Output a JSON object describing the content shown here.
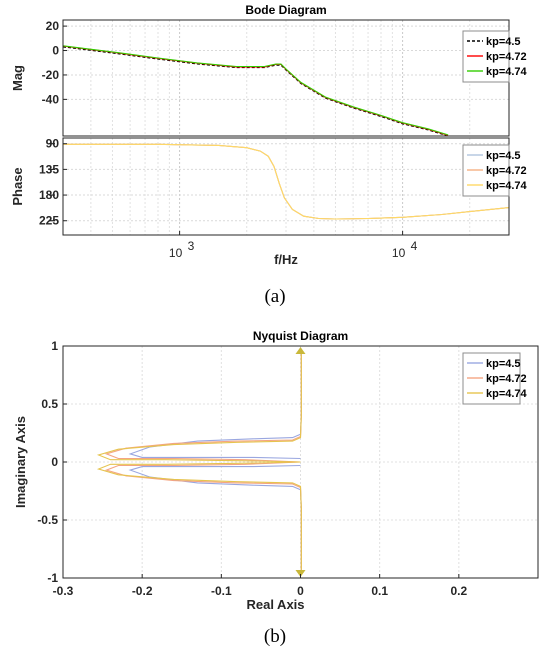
{
  "captions": {
    "a": "(a)",
    "b": "(b)"
  },
  "chart_data": [
    {
      "type": "line",
      "panel": "magnitude",
      "title": "Bode Diagram",
      "ylabel": "Mag",
      "xlabel": "",
      "xscale": "log",
      "xlim": [
        300,
        30000
      ],
      "ylim": [
        -70,
        25
      ],
      "yticks": [
        20,
        0,
        -20,
        -40
      ],
      "yticklabels": [
        "20",
        "0",
        "-20",
        "-40"
      ],
      "grid": true,
      "legend": "top-right",
      "series": [
        {
          "name": "kp=4.5",
          "color": "#000000",
          "style": "dashed",
          "x": [
            300,
            500,
            800,
            1200,
            1800,
            2400,
            2700,
            2850,
            3000,
            3500,
            4500,
            6000,
            8000,
            10000,
            13000,
            16000
          ],
          "y": [
            3,
            -2,
            -7,
            -11,
            -14,
            -14,
            -12,
            -12,
            -16,
            -27,
            -39,
            -47,
            -54,
            -60,
            -65,
            -70
          ]
        },
        {
          "name": "kp=4.72",
          "color": "#ff0000",
          "style": "solid",
          "x": [
            300,
            500,
            800,
            1200,
            1800,
            2400,
            2700,
            2850,
            3000,
            3500,
            4500,
            6000,
            8000,
            10000,
            13000,
            16000
          ],
          "y": [
            3.6,
            -1.4,
            -6.4,
            -10.4,
            -13.4,
            -13.4,
            -11.4,
            -11.4,
            -15.4,
            -26.4,
            -38.4,
            -46.4,
            -53.4,
            -59.4,
            -64.4,
            -69.4
          ]
        },
        {
          "name": "kp=4.74",
          "color": "#33cc00",
          "style": "solid",
          "x": [
            300,
            500,
            800,
            1200,
            1800,
            2400,
            2700,
            2850,
            3000,
            3500,
            4500,
            6000,
            8000,
            10000,
            13000,
            16000
          ],
          "y": [
            3.9,
            -1.1,
            -6.1,
            -10.1,
            -13.1,
            -13.1,
            -11.1,
            -11.1,
            -15.1,
            -26.1,
            -38.1,
            -46.1,
            -53.1,
            -59.1,
            -64.1,
            -69.1
          ]
        }
      ]
    },
    {
      "type": "line",
      "panel": "phase",
      "title": "",
      "ylabel": "Phase",
      "xlabel": "f/Hz",
      "xscale": "log",
      "xlim": [
        300,
        30000
      ],
      "ylim": [
        -250,
        -80
      ],
      "yticks": [
        -90,
        -135,
        -180,
        -225
      ],
      "yticklabels": [
        "90",
        "135",
        "180",
        "225"
      ],
      "xticks": [
        1000,
        10000
      ],
      "xtick_bases": [
        "10",
        "10"
      ],
      "xtick_exps": [
        "3",
        "4"
      ],
      "grid": true,
      "legend": "top-right",
      "series": [
        {
          "name": "kp=4.5",
          "color": "#b0c4de",
          "style": "solid",
          "x": [
            300,
            800,
            1500,
            2000,
            2300,
            2500,
            2650,
            2800,
            2950,
            3200,
            3600,
            4200,
            5000,
            7000,
            10000,
            15000,
            20000,
            30000
          ],
          "y": [
            -91,
            -91,
            -93,
            -97,
            -103,
            -112,
            -130,
            -160,
            -185,
            -205,
            -217,
            -221,
            -222,
            -221,
            -219,
            -214,
            -209,
            -202
          ]
        },
        {
          "name": "kp=4.72",
          "color": "#f4b183",
          "style": "solid",
          "x": [
            300,
            800,
            1500,
            2000,
            2300,
            2500,
            2650,
            2800,
            2950,
            3200,
            3600,
            4200,
            5000,
            7000,
            10000,
            15000,
            20000,
            30000
          ],
          "y": [
            -91,
            -91,
            -93,
            -97,
            -103,
            -112,
            -130,
            -160,
            -185,
            -205,
            -217,
            -221,
            -222,
            -221,
            -219,
            -214,
            -209,
            -202
          ]
        },
        {
          "name": "kp=4.74",
          "color": "#ffd966",
          "style": "solid",
          "x": [
            300,
            800,
            1500,
            2000,
            2300,
            2500,
            2650,
            2800,
            2950,
            3200,
            3600,
            4200,
            5000,
            7000,
            10000,
            15000,
            20000,
            30000
          ],
          "y": [
            -91,
            -91,
            -93,
            -97,
            -103,
            -112,
            -130,
            -160,
            -185,
            -205,
            -217,
            -221,
            -222,
            -221,
            -219,
            -214,
            -209,
            -202
          ]
        }
      ]
    },
    {
      "type": "line",
      "panel": "nyquist",
      "title": "Nyquist Diagram",
      "xlabel": "Real Axis",
      "ylabel": "Imaginary Axis",
      "xlim": [
        -0.3,
        0.3
      ],
      "ylim": [
        -1,
        1
      ],
      "xticks": [
        -0.3,
        -0.2,
        -0.1,
        0,
        0.1,
        0.2
      ],
      "xticklabels": [
        "-0.3",
        "-0.2",
        "-0.1",
        "0",
        "0.1",
        "0.2"
      ],
      "yticks": [
        1,
        0.5,
        0,
        -0.5,
        -1
      ],
      "yticklabels": [
        "1",
        "0.5",
        "0",
        "-0.5",
        "-1"
      ],
      "grid": true,
      "legend": "top-right",
      "series": [
        {
          "name": "kp=4.5",
          "color": "#9aa7e0",
          "style": "solid",
          "x": [
            0.001,
            0.001,
            0.0,
            -0.01,
            -0.06,
            -0.13,
            -0.19,
            -0.215,
            -0.2,
            -0.14,
            -0.06,
            0.0
          ],
          "y": [
            0.93,
            0.4,
            0.24,
            0.21,
            0.2,
            0.18,
            0.13,
            0.07,
            0.04,
            0.04,
            0.04,
            0.03
          ]
        },
        {
          "name": "kp=4.72",
          "color": "#f4a582",
          "style": "solid",
          "x": [
            0.001,
            0.001,
            0.0,
            -0.01,
            -0.08,
            -0.16,
            -0.22,
            -0.245,
            -0.23,
            -0.16,
            -0.07,
            0.0
          ],
          "y": [
            0.93,
            0.4,
            0.22,
            0.19,
            0.18,
            0.16,
            0.12,
            0.07,
            0.03,
            0.03,
            0.02,
            0.0
          ]
        },
        {
          "name": "kp=4.74",
          "color": "#e6c44e",
          "style": "solid",
          "x": [
            0.001,
            0.001,
            0.0,
            -0.01,
            -0.08,
            -0.16,
            -0.23,
            -0.255,
            -0.24,
            -0.17,
            -0.07,
            0.0
          ],
          "y": [
            0.93,
            0.4,
            0.21,
            0.18,
            0.17,
            0.15,
            0.11,
            0.06,
            0.02,
            0.02,
            0.01,
            0.0
          ]
        }
      ]
    }
  ]
}
